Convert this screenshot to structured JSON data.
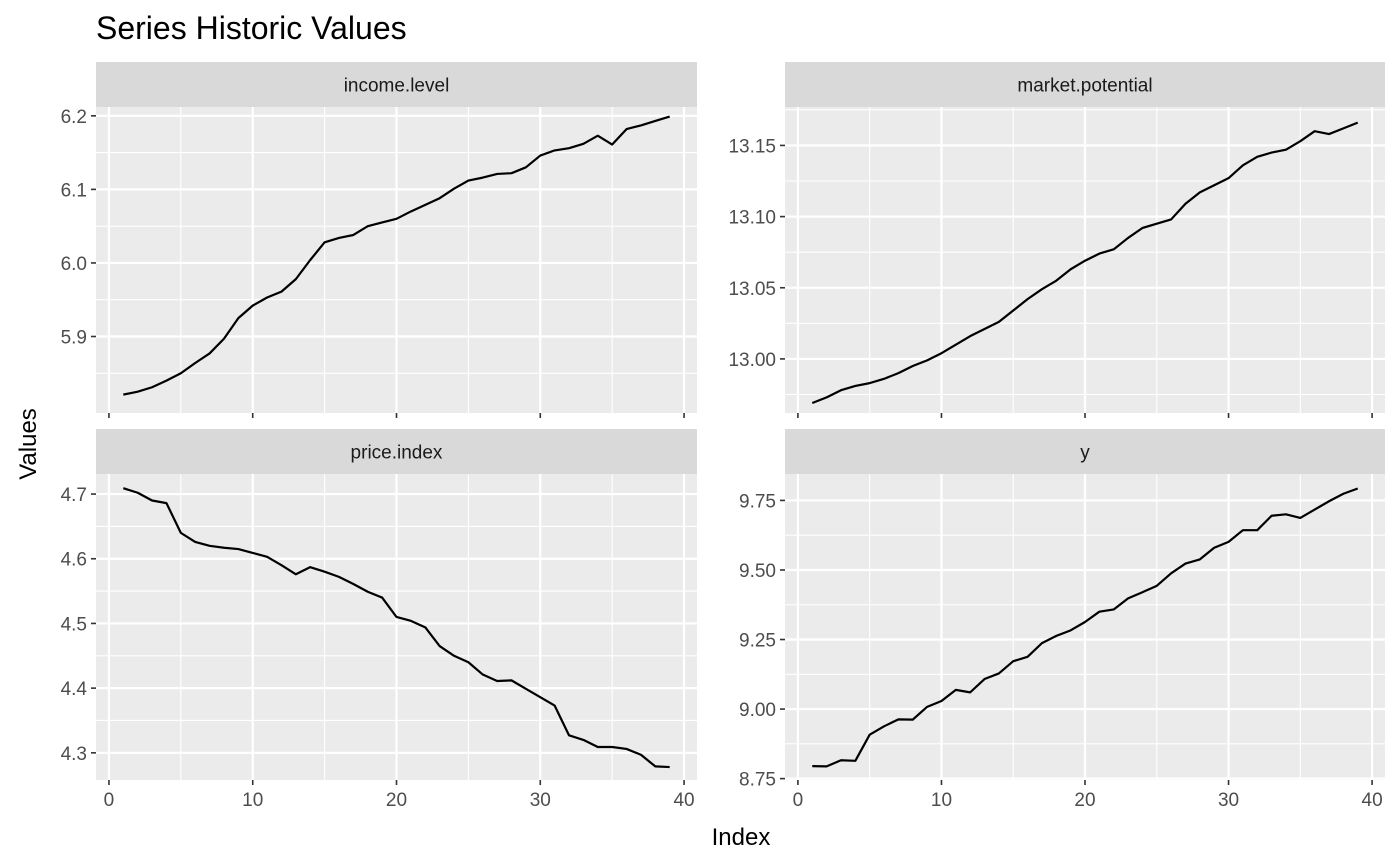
{
  "chart_data": {
    "type": "line",
    "title": "Series Historic Values",
    "xlabel": "Index",
    "ylabel": "Values",
    "x_ticks": [
      0,
      10,
      20,
      30,
      40
    ],
    "x_range": [
      -0.9,
      40.9
    ],
    "panels": [
      {
        "name": "income.level",
        "ylim": [
          5.796,
          6.212
        ],
        "y_ticks": [
          5.9,
          6.0,
          6.1,
          6.2
        ],
        "y_tick_labels": [
          "5.9",
          "6.0",
          "6.1",
          "6.2"
        ],
        "x": [
          1,
          2,
          3,
          4,
          5,
          6,
          7,
          8,
          9,
          10,
          11,
          12,
          13,
          14,
          15,
          16,
          17,
          18,
          19,
          20,
          21,
          22,
          23,
          24,
          25,
          26,
          27,
          28,
          29,
          30,
          31,
          32,
          33,
          34,
          35,
          36,
          37,
          38,
          39
        ],
        "values": [
          5.821,
          5.825,
          5.831,
          5.84,
          5.85,
          5.864,
          5.877,
          5.897,
          5.925,
          5.942,
          5.953,
          5.961,
          5.978,
          6.004,
          6.028,
          6.034,
          6.038,
          6.05,
          6.055,
          6.06,
          6.07,
          6.079,
          6.088,
          6.101,
          6.112,
          6.116,
          6.121,
          6.122,
          6.13,
          6.146,
          6.153,
          6.156,
          6.162,
          6.173,
          6.161,
          6.182,
          6.187,
          6.193,
          6.199
        ]
      },
      {
        "name": "market.potential",
        "ylim": [
          12.962,
          13.177
        ],
        "y_ticks": [
          13.0,
          13.05,
          13.1,
          13.15
        ],
        "y_tick_labels": [
          "13.00",
          "13.05",
          "13.10",
          "13.15"
        ],
        "x": [
          1,
          2,
          3,
          4,
          5,
          6,
          7,
          8,
          9,
          10,
          11,
          12,
          13,
          14,
          15,
          16,
          17,
          18,
          19,
          20,
          21,
          22,
          23,
          24,
          25,
          26,
          27,
          28,
          29,
          30,
          31,
          32,
          33,
          34,
          35,
          36,
          37,
          38,
          39
        ],
        "values": [
          12.969,
          12.973,
          12.978,
          12.981,
          12.983,
          12.986,
          12.99,
          12.995,
          12.999,
          13.004,
          13.01,
          13.016,
          13.021,
          13.026,
          13.034,
          13.042,
          13.049,
          13.055,
          13.063,
          13.069,
          13.074,
          13.077,
          13.085,
          13.092,
          13.095,
          13.098,
          13.109,
          13.117,
          13.122,
          13.127,
          13.136,
          13.142,
          13.145,
          13.147,
          13.153,
          13.16,
          13.158,
          13.162,
          13.166
        ]
      },
      {
        "name": "price.index",
        "ylim": [
          4.258,
          4.731
        ],
        "y_ticks": [
          4.3,
          4.4,
          4.5,
          4.6,
          4.7
        ],
        "y_tick_labels": [
          "4.3",
          "4.4",
          "4.5",
          "4.6",
          "4.7"
        ],
        "x": [
          1,
          2,
          3,
          4,
          5,
          6,
          7,
          8,
          9,
          10,
          11,
          12,
          13,
          14,
          15,
          16,
          17,
          18,
          19,
          20,
          21,
          22,
          23,
          24,
          25,
          26,
          27,
          28,
          29,
          30,
          31,
          32,
          33,
          34,
          35,
          36,
          37,
          38,
          39
        ],
        "values": [
          4.709,
          4.702,
          4.69,
          4.686,
          4.64,
          4.626,
          4.62,
          4.617,
          4.615,
          4.609,
          4.603,
          4.59,
          4.576,
          4.587,
          4.58,
          4.572,
          4.561,
          4.549,
          4.54,
          4.51,
          4.504,
          4.494,
          4.465,
          4.45,
          4.44,
          4.421,
          4.411,
          4.412,
          4.399,
          4.386,
          4.373,
          4.327,
          4.32,
          4.309,
          4.309,
          4.306,
          4.297,
          4.279,
          4.278
        ]
      },
      {
        "name": "y",
        "ylim": [
          8.745,
          9.845
        ],
        "y_ticks": [
          8.75,
          9.0,
          9.25,
          9.5,
          9.75
        ],
        "y_tick_labels": [
          "8.75",
          "9.00",
          "9.25",
          "9.50",
          "9.75"
        ],
        "x": [
          1,
          2,
          3,
          4,
          5,
          6,
          7,
          8,
          9,
          10,
          11,
          12,
          13,
          14,
          15,
          16,
          17,
          18,
          19,
          20,
          21,
          22,
          23,
          24,
          25,
          26,
          27,
          28,
          29,
          30,
          31,
          32,
          33,
          34,
          35,
          36,
          37,
          38,
          39
        ],
        "values": [
          8.795,
          8.794,
          8.816,
          8.814,
          8.908,
          8.938,
          8.963,
          8.962,
          9.008,
          9.029,
          9.069,
          9.06,
          9.108,
          9.128,
          9.172,
          9.188,
          9.237,
          9.263,
          9.283,
          9.313,
          9.35,
          9.358,
          9.398,
          9.42,
          9.443,
          9.488,
          9.523,
          9.538,
          9.58,
          9.601,
          9.643,
          9.643,
          9.695,
          9.7,
          9.687,
          9.717,
          9.747,
          9.774,
          9.793
        ]
      }
    ]
  }
}
